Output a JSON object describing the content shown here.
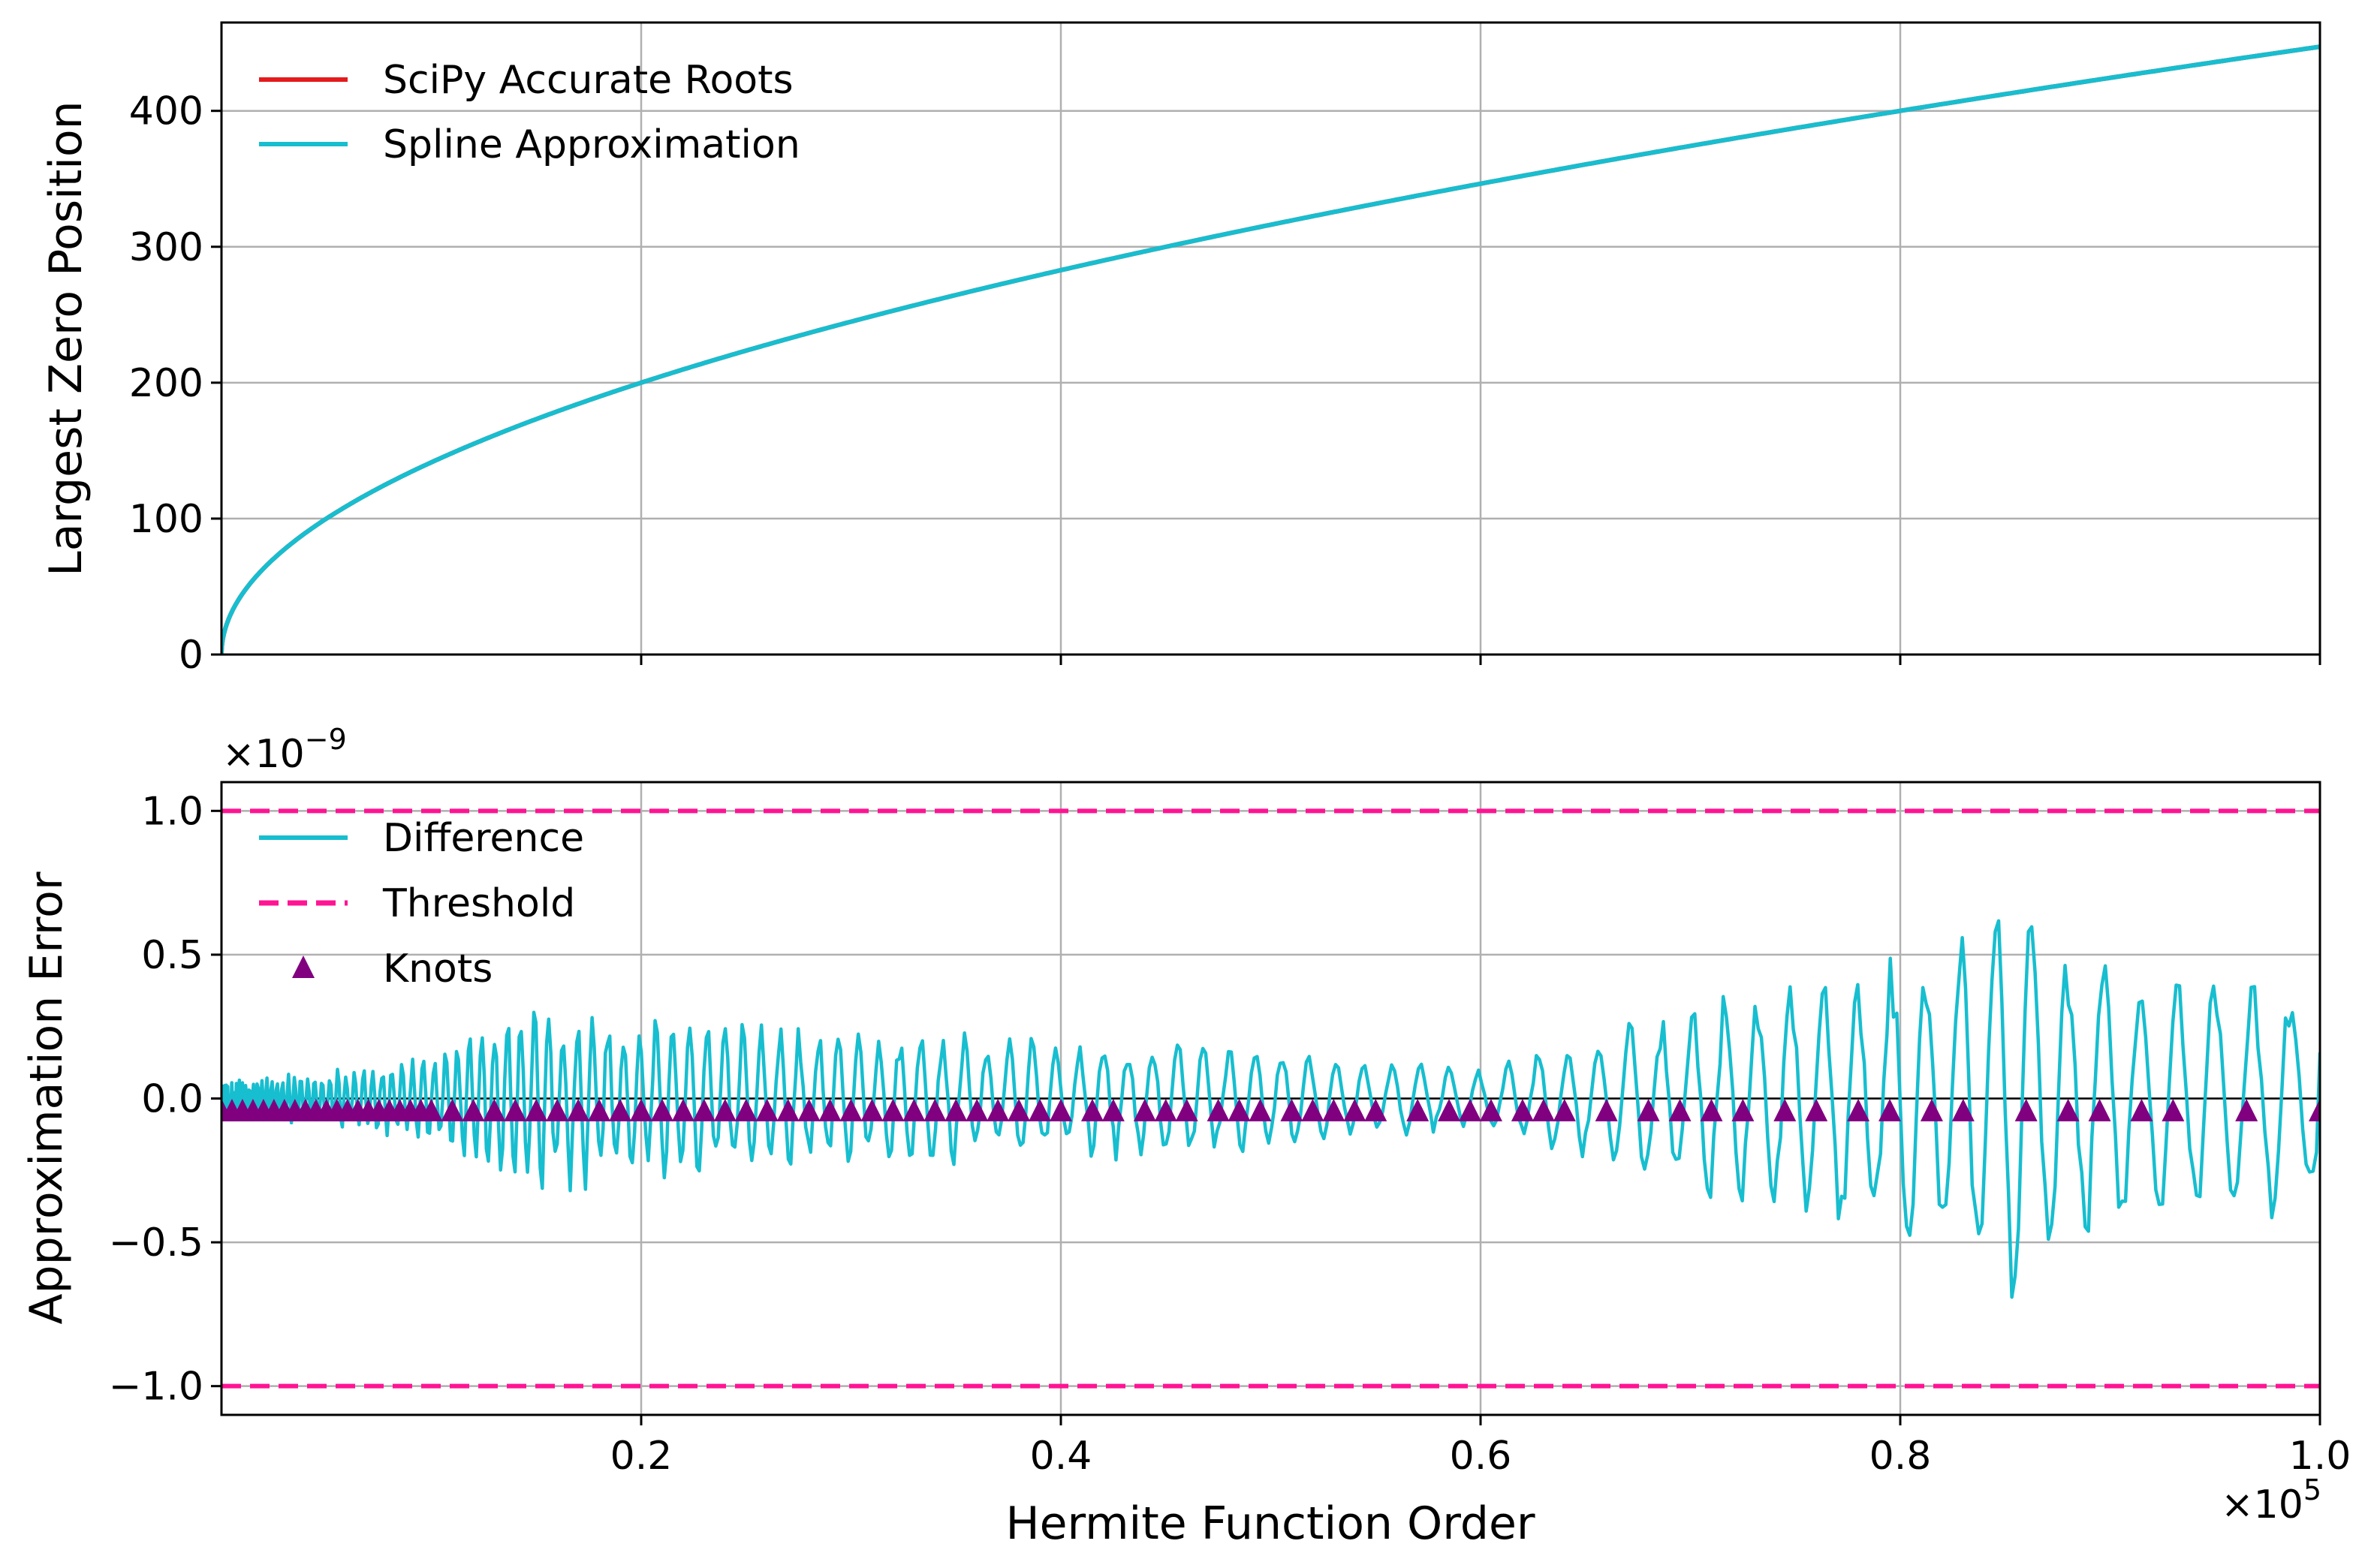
{
  "chart_data": [
    {
      "type": "line",
      "ylabel": "Largest Zero Position",
      "xlim": [
        0,
        100000
      ],
      "ylim": [
        0,
        465
      ],
      "yticks": [
        0,
        100,
        200,
        300,
        400
      ],
      "xticks": [
        20000,
        40000,
        60000,
        80000,
        100000
      ],
      "grid": true,
      "legend_position": "top-left",
      "series": [
        {
          "name": "SciPy Accurate Roots",
          "color": "#e41a1c",
          "style": "solid",
          "x": [
            0,
            1000,
            5000,
            10000,
            20000,
            30000,
            40000,
            50000,
            60000,
            70000,
            80000,
            90000,
            100000
          ],
          "y": [
            0,
            44.7,
            100,
            141.4,
            200,
            244.9,
            282.8,
            316.2,
            346.4,
            374.2,
            400,
            424.3,
            447.2
          ]
        },
        {
          "name": "Spline Approximation",
          "color": "#17becf",
          "style": "solid",
          "x": [
            0,
            1000,
            5000,
            10000,
            20000,
            30000,
            40000,
            50000,
            60000,
            70000,
            80000,
            90000,
            100000
          ],
          "y": [
            0,
            44.7,
            100,
            141.4,
            200,
            244.9,
            282.8,
            316.2,
            346.4,
            374.2,
            400,
            424.3,
            447.2
          ]
        }
      ]
    },
    {
      "type": "line",
      "xlabel": "Hermite Function Order",
      "ylabel": "Approximation Error",
      "x_multiplier_label": "×10",
      "x_multiplier_exp": "5",
      "y_multiplier_label": "×10",
      "y_multiplier_exp": "−9",
      "xlim": [
        0,
        100000
      ],
      "ylim": [
        -1.1e-09,
        1.1e-09
      ],
      "xticks": [
        20000,
        40000,
        60000,
        80000,
        100000
      ],
      "xtick_labels": [
        "0.2",
        "0.4",
        "0.6",
        "0.8",
        "1.0"
      ],
      "yticks": [
        1e-09,
        5e-10,
        0,
        -5e-10,
        -1e-09
      ],
      "ytick_labels": [
        "1.0",
        "0.5",
        "0.0",
        "−0.5",
        "−1.0"
      ],
      "grid": true,
      "legend_position": "top-left",
      "reference_line_y": 0,
      "series": [
        {
          "name": "Difference",
          "color": "#17becf",
          "style": "solid",
          "envelope": {
            "x": [
              0,
              10000,
              14000,
              20000,
              30000,
              40000,
              50000,
              60000,
              70000,
              80000,
              85000,
              90000,
              95000,
              100000
            ],
            "amplitude": [
              6e-11,
              1.5e-10,
              3.5e-10,
              3e-10,
              2.5e-10,
              2.2e-10,
              2e-10,
              1e-10,
              3.5e-10,
              5.5e-10,
              7.5e-10,
              5e-10,
              5e-10,
              4.5e-10
            ]
          },
          "final_value": 1.6e-10
        },
        {
          "name": "Threshold",
          "color": "#ff1493",
          "style": "dashed",
          "y": [
            1e-09,
            -1e-09
          ]
        },
        {
          "name": "Knots",
          "color": "#800080",
          "marker": "triangle",
          "y": -4e-11,
          "x": [
            0,
            500,
            1000,
            1500,
            2000,
            2500,
            3000,
            3500,
            4000,
            4500,
            5000,
            5500,
            6000,
            6500,
            7000,
            7500,
            8000,
            8500,
            9000,
            9500,
            10000,
            11000,
            12000,
            13000,
            14000,
            15000,
            16000,
            17000,
            18000,
            19000,
            20000,
            21000,
            22000,
            23000,
            24000,
            25000,
            26000,
            27000,
            28000,
            29000,
            30000,
            31000,
            32000,
            33000,
            34000,
            35000,
            36000,
            37000,
            38000,
            39000,
            40000,
            41500,
            42500,
            44000,
            45000,
            46000,
            47500,
            48500,
            49500,
            51000,
            52000,
            53000,
            54000,
            55000,
            57000,
            58500,
            59500,
            60500,
            62000,
            63000,
            64000,
            66000,
            68000,
            69500,
            71000,
            72500,
            74500,
            76000,
            78000,
            79500,
            81500,
            83000,
            86000,
            88000,
            89500,
            91500,
            93000,
            96500,
            100000
          ]
        }
      ]
    }
  ]
}
